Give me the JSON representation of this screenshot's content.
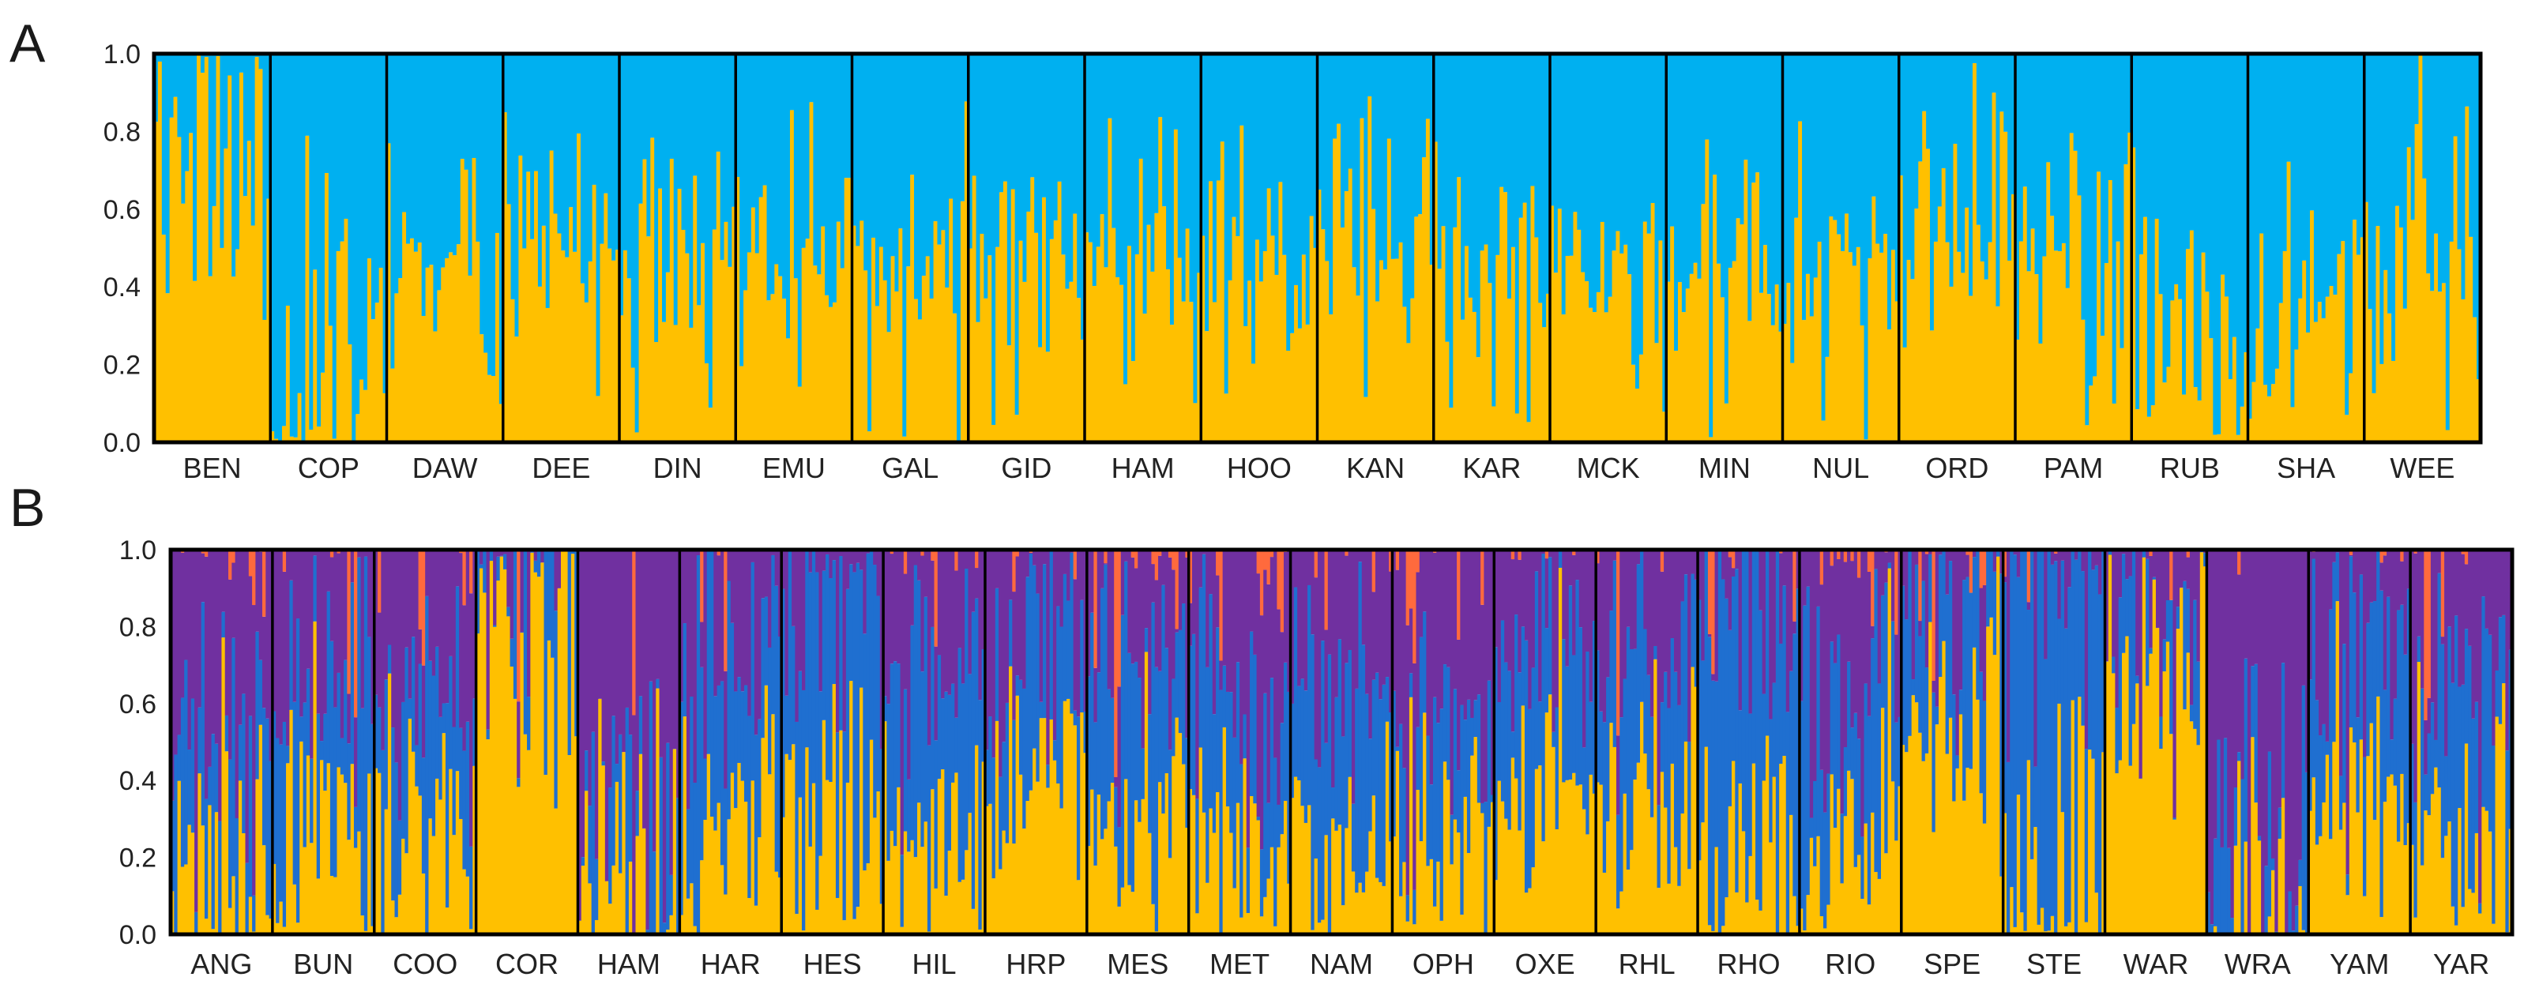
{
  "figure": {
    "panel_labels": [
      "A",
      "B"
    ]
  },
  "chart_data": [
    {
      "type": "bar",
      "subtype": "stacked-admixture",
      "panel": "A",
      "title": "",
      "xlabel": "",
      "ylabel": "",
      "ylim": [
        0,
        1
      ],
      "yticks": [
        "0.0",
        "0.2",
        "0.4",
        "0.6",
        "0.8",
        "1.0"
      ],
      "series": [
        {
          "name": "cluster 1",
          "color": "#ffc000"
        },
        {
          "name": "cluster 2",
          "color": "#00b0f0"
        }
      ],
      "populations": [
        {
          "name": "BEN",
          "mean": [
            0.8,
            0.2
          ]
        },
        {
          "name": "COP",
          "mean": [
            0.12,
            0.88
          ]
        },
        {
          "name": "DAW",
          "mean": [
            0.35,
            0.65
          ]
        },
        {
          "name": "DEE",
          "mean": [
            0.55,
            0.45
          ]
        },
        {
          "name": "DIN",
          "mean": [
            0.3,
            0.7
          ]
        },
        {
          "name": "EMU",
          "mean": [
            0.45,
            0.55
          ]
        },
        {
          "name": "GAL",
          "mean": [
            0.33,
            0.67
          ]
        },
        {
          "name": "GID",
          "mean": [
            0.38,
            0.62
          ]
        },
        {
          "name": "HAM",
          "mean": [
            0.5,
            0.5
          ]
        },
        {
          "name": "HOO",
          "mean": [
            0.42,
            0.58
          ]
        },
        {
          "name": "KAN",
          "mean": [
            0.55,
            0.45
          ]
        },
        {
          "name": "KAR",
          "mean": [
            0.35,
            0.65
          ]
        },
        {
          "name": "MCK",
          "mean": [
            0.42,
            0.58
          ]
        },
        {
          "name": "MIN",
          "mean": [
            0.4,
            0.6
          ]
        },
        {
          "name": "NUL",
          "mean": [
            0.38,
            0.62
          ]
        },
        {
          "name": "ORD",
          "mean": [
            0.62,
            0.38
          ]
        },
        {
          "name": "PAM",
          "mean": [
            0.38,
            0.62
          ]
        },
        {
          "name": "RUB",
          "mean": [
            0.2,
            0.8
          ]
        },
        {
          "name": "SHA",
          "mean": [
            0.35,
            0.65
          ]
        },
        {
          "name": "WEE",
          "mean": [
            0.4,
            0.6
          ]
        }
      ]
    },
    {
      "type": "bar",
      "subtype": "stacked-admixture",
      "panel": "B",
      "title": "",
      "xlabel": "",
      "ylabel": "",
      "ylim": [
        0,
        1
      ],
      "yticks": [
        "0.0",
        "0.2",
        "0.4",
        "0.6",
        "0.8",
        "1.0"
      ],
      "series": [
        {
          "name": "cluster 1",
          "color": "#ffc000"
        },
        {
          "name": "cluster 2",
          "color": "#1f6fd0"
        },
        {
          "name": "cluster 3",
          "color": "#7030a0"
        },
        {
          "name": "cluster 4",
          "color": "#ff6a3d"
        }
      ],
      "populations": [
        {
          "name": "ANG",
          "mean": [
            0.15,
            0.4,
            0.43,
            0.02
          ]
        },
        {
          "name": "BUN",
          "mean": [
            0.25,
            0.45,
            0.29,
            0.01
          ]
        },
        {
          "name": "COO",
          "mean": [
            0.2,
            0.4,
            0.39,
            0.01
          ]
        },
        {
          "name": "COR",
          "mean": [
            0.85,
            0.12,
            0.03,
            0.0
          ]
        },
        {
          "name": "HAM",
          "mean": [
            0.12,
            0.08,
            0.79,
            0.01
          ]
        },
        {
          "name": "HAR",
          "mean": [
            0.25,
            0.5,
            0.24,
            0.01
          ]
        },
        {
          "name": "HES",
          "mean": [
            0.2,
            0.7,
            0.1,
            0.0
          ]
        },
        {
          "name": "HIL",
          "mean": [
            0.25,
            0.45,
            0.29,
            0.01
          ]
        },
        {
          "name": "HRP",
          "mean": [
            0.45,
            0.3,
            0.23,
            0.02
          ]
        },
        {
          "name": "MES",
          "mean": [
            0.35,
            0.4,
            0.2,
            0.05
          ]
        },
        {
          "name": "MET",
          "mean": [
            0.25,
            0.4,
            0.33,
            0.02
          ]
        },
        {
          "name": "NAM",
          "mean": [
            0.2,
            0.5,
            0.29,
            0.01
          ]
        },
        {
          "name": "OPH",
          "mean": [
            0.25,
            0.2,
            0.53,
            0.02
          ]
        },
        {
          "name": "OXE",
          "mean": [
            0.3,
            0.45,
            0.24,
            0.01
          ]
        },
        {
          "name": "RHL",
          "mean": [
            0.4,
            0.35,
            0.24,
            0.01
          ]
        },
        {
          "name": "RHO",
          "mean": [
            0.15,
            0.75,
            0.09,
            0.01
          ]
        },
        {
          "name": "RIO",
          "mean": [
            0.25,
            0.35,
            0.38,
            0.02
          ]
        },
        {
          "name": "SPE",
          "mean": [
            0.65,
            0.25,
            0.08,
            0.02
          ]
        },
        {
          "name": "STE",
          "mean": [
            0.1,
            0.85,
            0.05,
            0.0
          ]
        },
        {
          "name": "WAR",
          "mean": [
            0.7,
            0.15,
            0.13,
            0.02
          ]
        },
        {
          "name": "WRA",
          "mean": [
            0.05,
            0.1,
            0.85,
            0.0
          ]
        },
        {
          "name": "YAM",
          "mean": [
            0.45,
            0.3,
            0.23,
            0.02
          ]
        },
        {
          "name": "YAR",
          "mean": [
            0.25,
            0.4,
            0.33,
            0.02
          ]
        }
      ]
    }
  ]
}
